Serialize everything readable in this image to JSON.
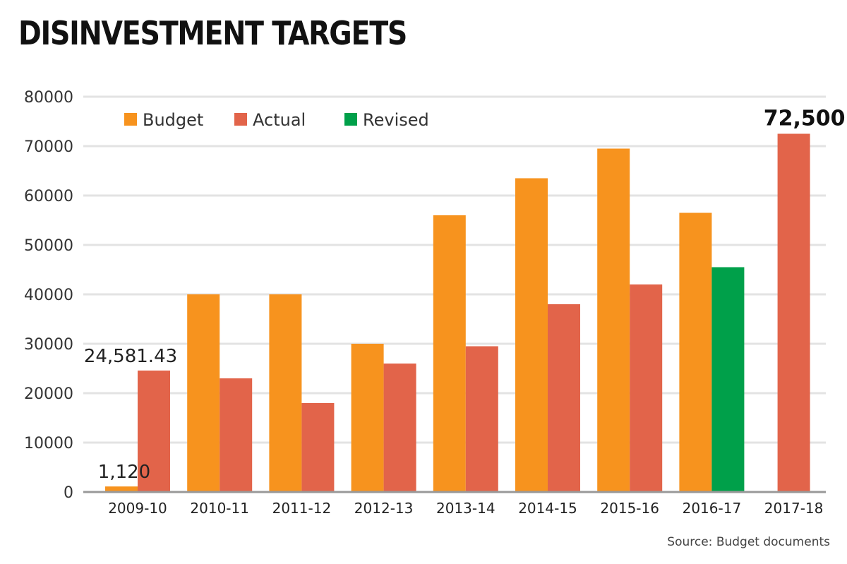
{
  "title": "DISINVESTMENT TARGETS",
  "source": "Source: Budget documents",
  "chart_data": {
    "type": "bar",
    "title": "DISINVESTMENT TARGETS",
    "xlabel": "",
    "ylabel": "",
    "ylim": [
      0,
      80000
    ],
    "yticks": [
      0,
      10000,
      20000,
      30000,
      40000,
      50000,
      60000,
      70000,
      80000
    ],
    "grid": true,
    "legend_position": "top-left",
    "categories": [
      "2009-10",
      "2010-11",
      "2011-12",
      "2012-13",
      "2013-14",
      "2014-15",
      "2015-16",
      "2016-17",
      "2017-18"
    ],
    "series": [
      {
        "name": "Budget",
        "color": "#F7931E",
        "values": [
          1120,
          40000,
          40000,
          30000,
          56000,
          63500,
          69500,
          56500,
          null
        ]
      },
      {
        "name": "Actual",
        "color": "#E2644A",
        "values": [
          24581.43,
          23000,
          18000,
          26000,
          29500,
          38000,
          42000,
          null,
          72500
        ]
      },
      {
        "name": "Revised",
        "color": "#00A04A",
        "values": [
          null,
          null,
          null,
          null,
          null,
          null,
          null,
          45500,
          null
        ]
      }
    ],
    "annotations": [
      {
        "text": "1,120",
        "category": "2009-10",
        "series": "Budget",
        "bold": false
      },
      {
        "text": "24,581.43",
        "category": "2009-10",
        "series": "Actual",
        "bold": false
      },
      {
        "text": "72,500",
        "category": "2017-18",
        "series": "Actual",
        "bold": true
      }
    ]
  }
}
